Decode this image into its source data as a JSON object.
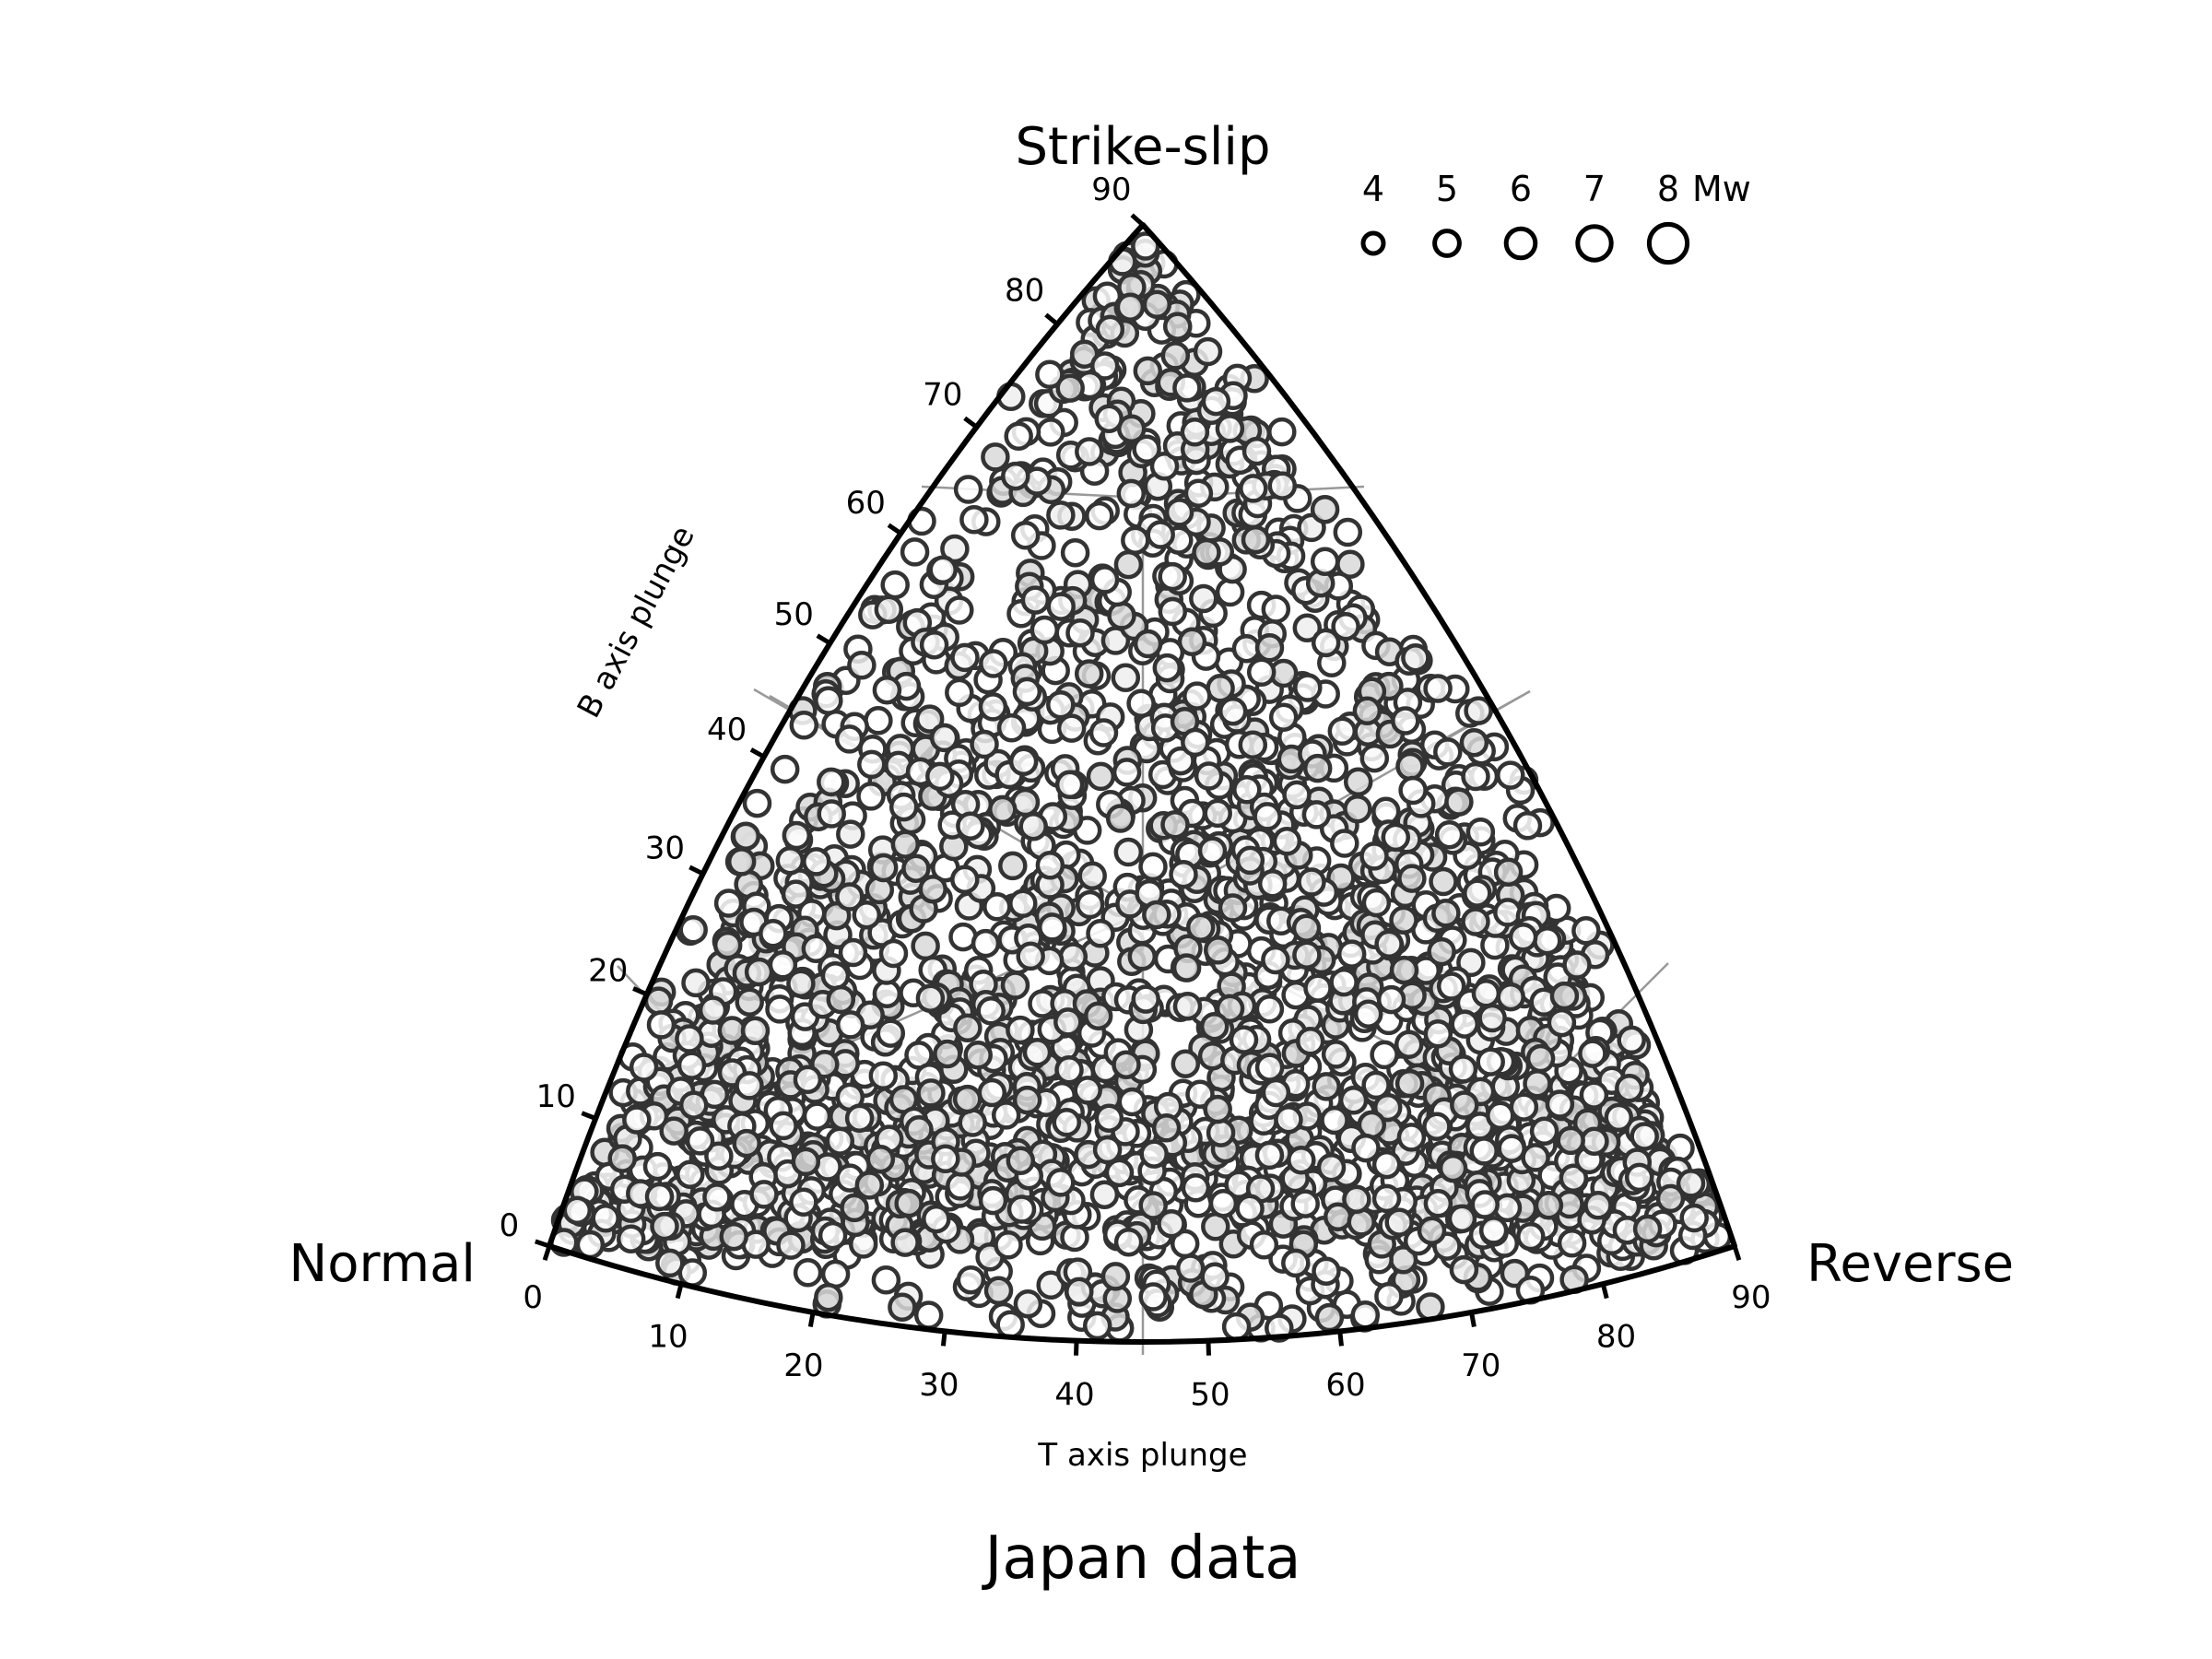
{
  "chart_data": {
    "type": "scatter",
    "title": "Japan data",
    "corners": {
      "top": "Strike-slip",
      "left": "Normal",
      "right": "Reverse"
    },
    "b_axis": {
      "label": "B axis plunge",
      "ticks": [
        "0",
        "10",
        "20",
        "30",
        "40",
        "50",
        "60",
        "70",
        "80",
        "90"
      ],
      "range": [
        0,
        90
      ]
    },
    "t_axis": {
      "label": "T axis plunge",
      "ticks": [
        "0",
        "10",
        "20",
        "30",
        "40",
        "50",
        "60",
        "70",
        "80",
        "90"
      ],
      "range": [
        0,
        90
      ]
    },
    "legend": {
      "title": "Mw",
      "magnitudes": [
        "4",
        "5",
        "6",
        "7",
        "8"
      ],
      "placement": "top-right"
    },
    "grid": true,
    "marker": {
      "shape": "open circle",
      "edge_color": "#333333",
      "fill_color": "#ffffff"
    },
    "point_count_approx": 2400,
    "density_note": "Events densest near Reverse corner, along bottom edge, and near Normal corner; sparser in center",
    "sample_points": [
      {
        "t_plunge": 45,
        "b_plunge": 88,
        "mw": 5.5
      },
      {
        "t_plunge": 42,
        "b_plunge": 80,
        "mw": 5.2
      },
      {
        "t_plunge": 50,
        "b_plunge": 75,
        "mw": 5.0
      },
      {
        "t_plunge": 38,
        "b_plunge": 65,
        "mw": 5.1
      },
      {
        "t_plunge": 55,
        "b_plunge": 62,
        "mw": 5.3
      },
      {
        "t_plunge": 30,
        "b_plunge": 48,
        "mw": 5.0
      },
      {
        "t_plunge": 60,
        "b_plunge": 45,
        "mw": 5.2
      },
      {
        "t_plunge": 20,
        "b_plunge": 30,
        "mw": 5.4
      },
      {
        "t_plunge": 70,
        "b_plunge": 28,
        "mw": 5.1
      },
      {
        "t_plunge": 10,
        "b_plunge": 12,
        "mw": 5.6
      },
      {
        "t_plunge": 80,
        "b_plunge": 10,
        "mw": 5.5
      },
      {
        "t_plunge": 45,
        "b_plunge": 5,
        "mw": 5.2
      },
      {
        "t_plunge": 85,
        "b_plunge": 3,
        "mw": 5.3
      },
      {
        "t_plunge": 5,
        "b_plunge": 4,
        "mw": 5.0
      }
    ]
  },
  "colors": {
    "frame": "#000000",
    "grid": "#999999",
    "marker_edge": "#333333",
    "marker_fill": "#ffffff"
  }
}
